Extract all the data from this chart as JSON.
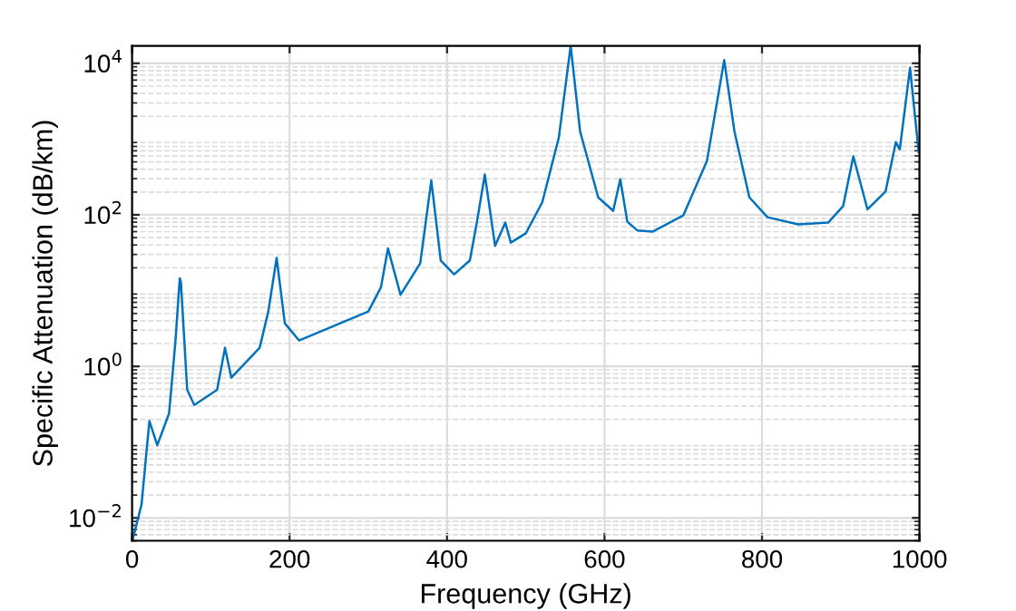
{
  "chart_data": {
    "type": "line",
    "xlabel": "Frequency (GHz)",
    "ylabel": "Specific Attenuation (dB/km)",
    "log": "y",
    "grid": true,
    "marker": "none",
    "line_style": "solid",
    "xlim": [
      0,
      1000
    ],
    "xticks": [
      0,
      200,
      400,
      600,
      800,
      1000
    ],
    "ylim": [
      0.005,
      17000
    ],
    "yticks": [
      {
        "value": 0.01,
        "label": "10$^{−2}$"
      },
      {
        "value": 1,
        "label": "10$^{0}$"
      },
      {
        "value": 100,
        "label": "10$^{2}$"
      },
      {
        "value": 10000,
        "label": "10$^{4}$"
      }
    ],
    "series": [
      {
        "color": "#0072bd",
        "x": [
          1,
          12,
          22,
          32,
          47,
          55,
          60.6,
          62,
          70,
          79,
          108,
          118,
          126,
          162,
          173,
          183.6,
          194,
          212,
          300,
          316,
          325,
          341,
          366,
          380,
          392,
          409,
          429,
          438,
          448,
          461,
          474,
          481,
          500,
          521,
          542,
          557,
          569,
          592,
          611,
          620,
          629,
          642,
          661,
          700,
          730,
          752,
          765,
          784,
          807,
          846,
          884,
          903,
          916,
          934,
          957,
          970,
          975,
          988,
          999
        ],
        "values": [
          0.0053,
          0.015,
          0.19,
          0.091,
          0.24,
          2.1,
          14.5,
          13,
          0.49,
          0.31,
          0.49,
          1.76,
          0.71,
          1.76,
          5.3,
          27,
          3.7,
          2.2,
          5.3,
          11,
          36,
          8.8,
          23,
          284,
          25,
          16.4,
          25,
          81,
          340,
          39,
          79,
          43,
          57,
          147,
          1050,
          17000,
          1260,
          170,
          113,
          295,
          81,
          62,
          60,
          98,
          510,
          11000,
          1260,
          170,
          93,
          75,
          79,
          130,
          590,
          118,
          204,
          910,
          730,
          8700,
          670
        ]
      }
    ]
  }
}
